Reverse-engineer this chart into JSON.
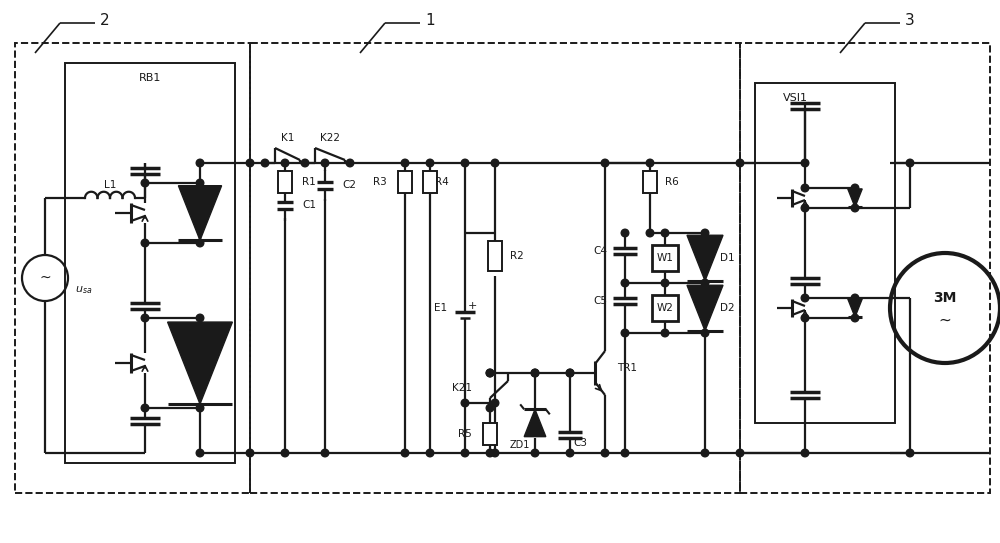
{
  "bg_color": "#ffffff",
  "line_color": "#1a1a1a",
  "lw": 1.6,
  "blw": 1.4,
  "figsize": [
    10.0,
    5.43
  ],
  "dpi": 100,
  "xlim": [
    0,
    100
  ],
  "ylim": [
    0,
    54.3
  ]
}
